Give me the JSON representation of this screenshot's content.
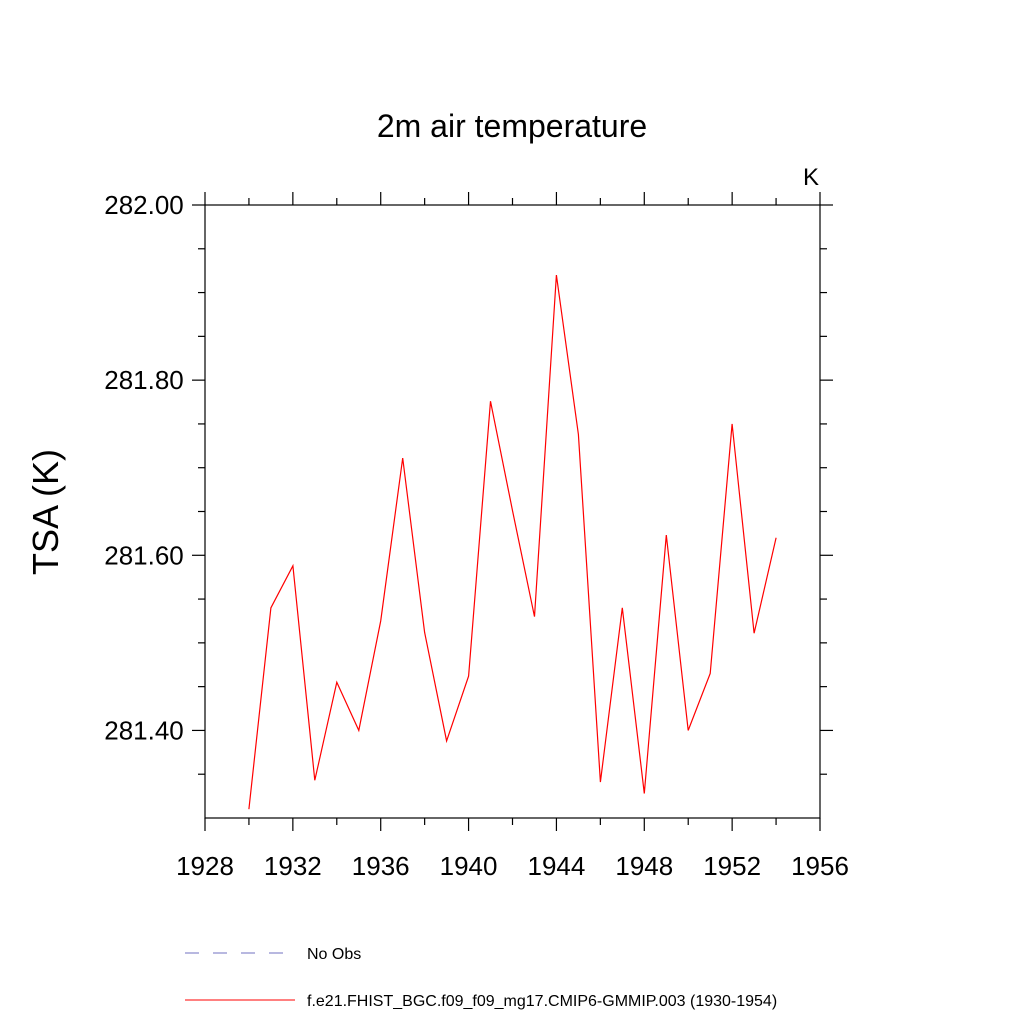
{
  "chart_data": {
    "type": "line",
    "title": "2m air temperature",
    "ylabel": "TSA  (K)",
    "units_label": "K",
    "xlabel": "",
    "xlim": [
      1928,
      1956
    ],
    "ylim": [
      281.3,
      282.0
    ],
    "xticks": [
      1928,
      1932,
      1936,
      1940,
      1944,
      1948,
      1952,
      1956
    ],
    "xtick_labels": [
      "1928",
      "1932",
      "1936",
      "1940",
      "1944",
      "1948",
      "1952",
      "1956"
    ],
    "yticks": [
      281.4,
      281.6,
      281.8,
      282.0
    ],
    "ytick_labels": [
      "281.40",
      "281.60",
      "281.80",
      "282.00"
    ],
    "grid": false,
    "series": [
      {
        "name": "f.e21.FHIST_BGC.f09_f09_mg17.CMIP6-GMMIP.003 (1930-1954)",
        "color": "#ff0000",
        "x": [
          1930,
          1931,
          1932,
          1933,
          1934,
          1935,
          1936,
          1937,
          1938,
          1939,
          1940,
          1941,
          1942,
          1943,
          1944,
          1945,
          1946,
          1947,
          1948,
          1949,
          1950,
          1951,
          1952,
          1953,
          1954
        ],
        "values": [
          281.31,
          281.54,
          281.588,
          281.343,
          281.455,
          281.4,
          281.525,
          281.711,
          281.512,
          281.388,
          281.462,
          281.776,
          281.651,
          281.53,
          281.92,
          281.738,
          281.341,
          281.54,
          281.328,
          281.623,
          281.4,
          281.465,
          281.75,
          281.511,
          281.62
        ]
      }
    ],
    "legend": [
      {
        "label": "No Obs",
        "color": "#7070c0",
        "style": "dashed"
      },
      {
        "label": "f.e21.FHIST_BGC.f09_f09_mg17.CMIP6-GMMIP.003 (1930-1954)",
        "color": "#ff0000",
        "style": "solid"
      }
    ]
  }
}
